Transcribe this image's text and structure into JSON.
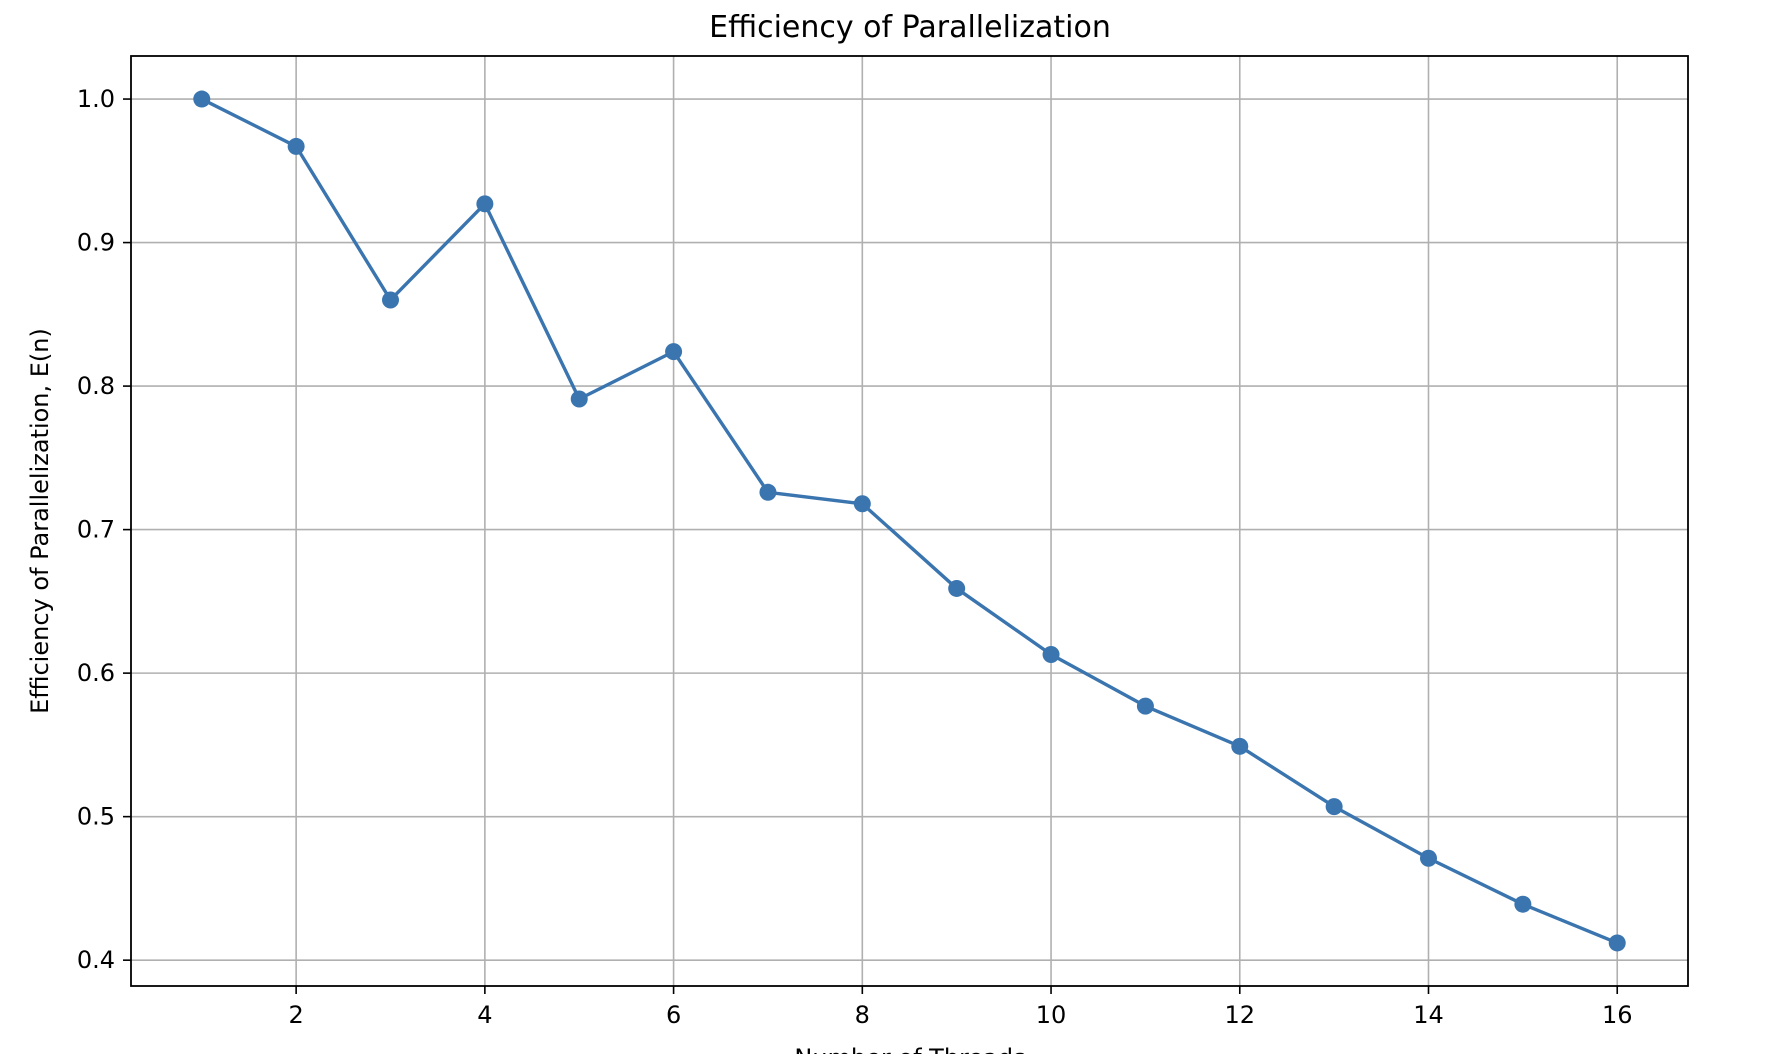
{
  "chart_data": {
    "type": "line",
    "title": "Efficiency of Parallelization",
    "xlabel": "Number of Threads",
    "ylabel": "Efficiency of Parallelization, E(n)",
    "xlim": [
      0.25,
      16.75
    ],
    "ylim": [
      0.382,
      1.03
    ],
    "xticks": [
      2,
      4,
      6,
      8,
      10,
      12,
      14,
      16
    ],
    "yticks": [
      0.4,
      0.5,
      0.6,
      0.7,
      0.8,
      0.9,
      1.0
    ],
    "ytick_labels": [
      "0.4",
      "0.5",
      "0.6",
      "0.7",
      "0.8",
      "0.9",
      "1.0"
    ],
    "grid": true,
    "series": [
      {
        "x": [
          1,
          2,
          3,
          4,
          5,
          6,
          7,
          8,
          9,
          10,
          11,
          12,
          13,
          14,
          15,
          16
        ],
        "values": [
          1.0,
          0.967,
          0.86,
          0.927,
          0.791,
          0.824,
          0.726,
          0.718,
          0.659,
          0.613,
          0.577,
          0.549,
          0.507,
          0.471,
          0.439,
          0.412
        ],
        "color": "#3a75af",
        "marker": "circle"
      }
    ]
  }
}
